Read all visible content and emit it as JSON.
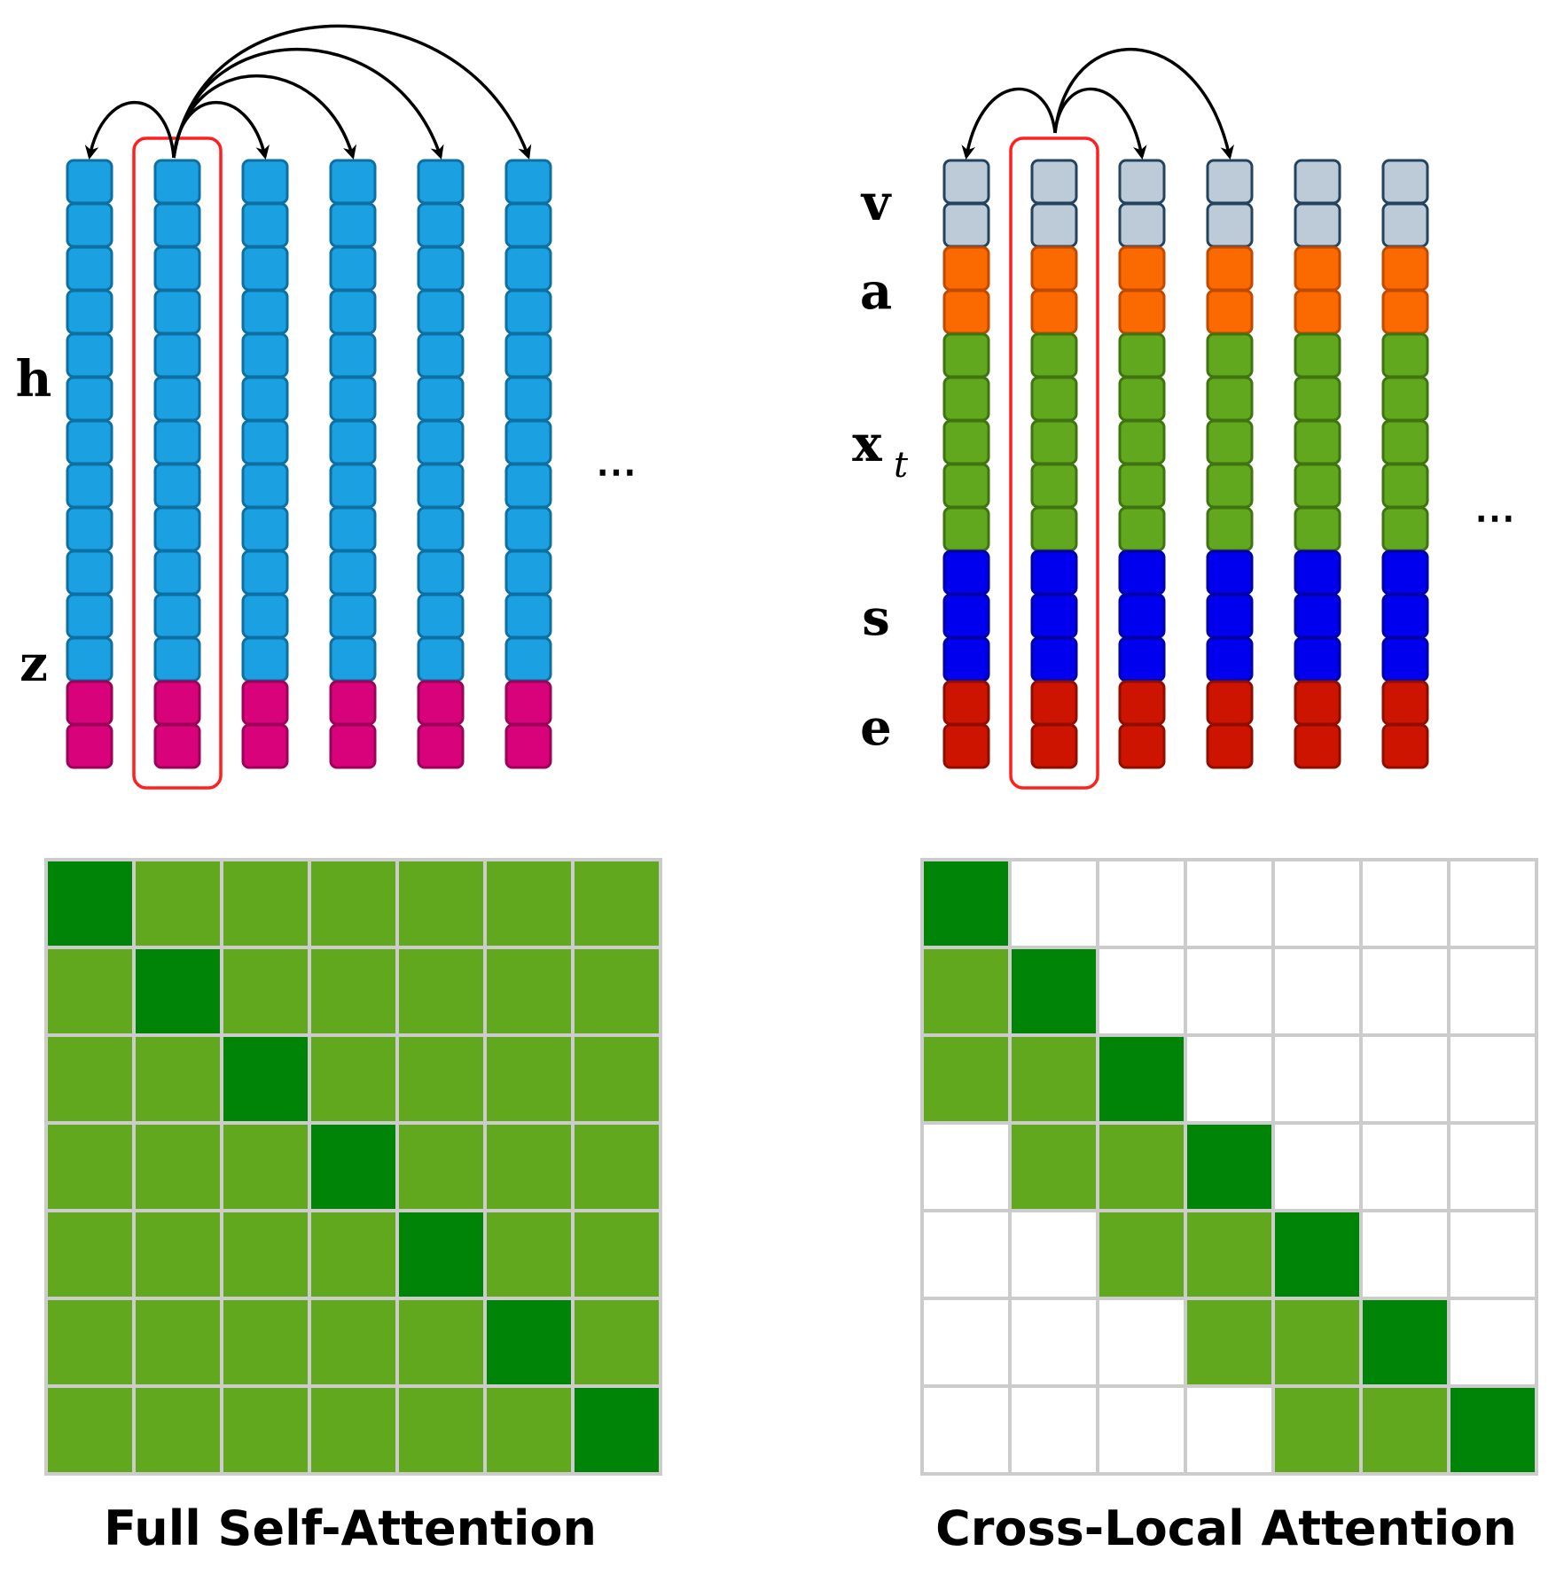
{
  "left_panel": {
    "labels": {
      "h": "h",
      "z": "z"
    },
    "ellipsis": "⋯",
    "column_count": 6,
    "highlighted_column": 1,
    "segments": [
      {
        "name": "h",
        "cells": 12,
        "fill": "#1ba1e2",
        "stroke": "#0e6fa3"
      },
      {
        "name": "z",
        "cells": 2,
        "fill": "#d8027a",
        "stroke": "#9b0358"
      }
    ],
    "arrows_from_column": 1,
    "arrows_to_columns": [
      0,
      2,
      3,
      4,
      5
    ]
  },
  "right_panel": {
    "labels": {
      "v": "v",
      "a": "a",
      "x": "x",
      "x_sub": "t",
      "s": "s",
      "e": "e"
    },
    "ellipsis": "⋯",
    "column_count": 6,
    "highlighted_column": 1,
    "segments": [
      {
        "name": "v",
        "cells": 2,
        "fill": "#bccbd7",
        "stroke": "#24435f"
      },
      {
        "name": "a",
        "cells": 2,
        "fill": "#fb6a00",
        "stroke": "#c24a00"
      },
      {
        "name": "x",
        "cells": 5,
        "fill": "#62a81e",
        "stroke": "#3f7410"
      },
      {
        "name": "s",
        "cells": 3,
        "fill": "#0000ef",
        "stroke": "#0000a6"
      },
      {
        "name": "e",
        "cells": 2,
        "fill": "#cd1400",
        "stroke": "#8f0e00"
      }
    ],
    "arrows_from_column": 1,
    "arrows_to_columns": [
      0,
      2,
      3
    ]
  },
  "matrices": {
    "size": 7,
    "colors": {
      "diagonal": "#008407",
      "neighbor": "#61a81e",
      "empty": "#ffffff",
      "grid": "#cccccc"
    },
    "full": {
      "caption": "Full Self-Attention",
      "band": 7
    },
    "local": {
      "caption": "Cross-Local Attention",
      "band": 2,
      "lower_only": true
    }
  },
  "highlight_color": "#ff1f1f"
}
